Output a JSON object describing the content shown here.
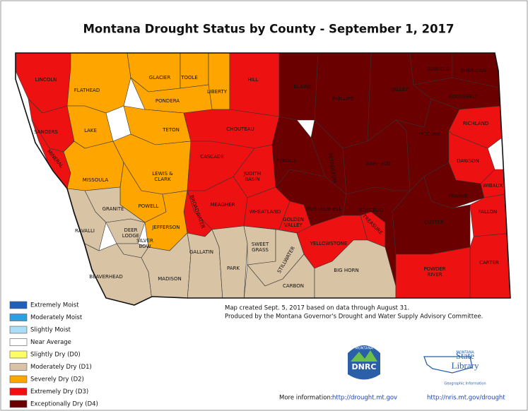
{
  "title": "Montana Drought Status by County - September 1, 2017",
  "legend": [
    {
      "label": "Extremely Moist",
      "color": "#1f5fb8"
    },
    {
      "label": "Moderately Moist",
      "color": "#29a3dd"
    },
    {
      "label": "Slightly Moist",
      "color": "#aaddf7"
    },
    {
      "label": "Near Average",
      "color": "#ffffff"
    },
    {
      "label": "Slightly Dry (D0)",
      "color": "#ffff66"
    },
    {
      "label": "Moderately Dry (D1)",
      "color": "#d9c3a5"
    },
    {
      "label": "Severely Dry (D2)",
      "color": "#ffa500"
    },
    {
      "label": "Extremely Dry (D3)",
      "color": "#ee1111"
    },
    {
      "label": "Exceptionally Dry (D4)",
      "color": "#6b0000"
    }
  ],
  "counties": [
    {
      "name": "LINCOLN",
      "color": "#ee1111"
    },
    {
      "name": "FLATHEAD",
      "color": "#ffa500"
    },
    {
      "name": "SANDERS",
      "color": "#ee1111"
    },
    {
      "name": "MINERAL",
      "color": "#ee1111"
    },
    {
      "name": "LAKE",
      "color": "#ffa500"
    },
    {
      "name": "MISSOULA",
      "color": "#ffa500"
    },
    {
      "name": "GLACIER",
      "color": "#ffa500"
    },
    {
      "name": "TOOLE",
      "color": "#ffa500"
    },
    {
      "name": "LIBERTY",
      "color": "#ffa500"
    },
    {
      "name": "HILL",
      "color": "#ee1111"
    },
    {
      "name": "PONDERA",
      "color": "#ffa500"
    },
    {
      "name": "TETON",
      "color": "#ffa500"
    },
    {
      "name": "LEWIS &\nCLARK",
      "color": "#ffa500"
    },
    {
      "name": "POWELL",
      "color": "#ffa500"
    },
    {
      "name": "CHOUTEAU",
      "color": "#ee1111"
    },
    {
      "name": "CASCADE",
      "color": "#ee1111"
    },
    {
      "name": "JUDITH\nBASIN",
      "color": "#ee1111"
    },
    {
      "name": "MEAGHER",
      "color": "#ee1111"
    },
    {
      "name": "BROADWATER",
      "color": "#ee1111"
    },
    {
      "name": "JEFFERSON",
      "color": "#ffa500"
    },
    {
      "name": "GRANITE",
      "color": "#d9c3a5"
    },
    {
      "name": "RAVALLI",
      "color": "#d9c3a5"
    },
    {
      "name": "DEER\nLODGE",
      "color": "#d9c3a5"
    },
    {
      "name": "SILVER\nBOW",
      "color": "#d9c3a5"
    },
    {
      "name": "BEAVERHEAD",
      "color": "#d9c3a5"
    },
    {
      "name": "MADISON",
      "color": "#d9c3a5"
    },
    {
      "name": "GALLATIN",
      "color": "#d9c3a5"
    },
    {
      "name": "PARK",
      "color": "#d9c3a5"
    },
    {
      "name": "SWEET\nGRASS",
      "color": "#d9c3a5"
    },
    {
      "name": "STILLWATER",
      "color": "#d9c3a5"
    },
    {
      "name": "CARBON",
      "color": "#d9c3a5"
    },
    {
      "name": "WHEATLAND",
      "color": "#ee1111"
    },
    {
      "name": "GOLDEN\nVALLEY",
      "color": "#ee1111"
    },
    {
      "name": "MUSSELSHELL",
      "color": "#6b0000"
    },
    {
      "name": "YELLOWSTONE",
      "color": "#ee1111"
    },
    {
      "name": "TREASURE",
      "color": "#ee1111"
    },
    {
      "name": "BIG HORN",
      "color": "#d9c3a5"
    },
    {
      "name": "FERGUS",
      "color": "#6b0000"
    },
    {
      "name": "BLAINE",
      "color": "#6b0000"
    },
    {
      "name": "PHILLIPS",
      "color": "#6b0000"
    },
    {
      "name": "PETROLEUM",
      "color": "#6b0000"
    },
    {
      "name": "VALLEY",
      "color": "#6b0000"
    },
    {
      "name": "DANIELS",
      "color": "#6b0000"
    },
    {
      "name": "SHERIDAN",
      "color": "#6b0000"
    },
    {
      "name": "ROOSEVELT",
      "color": "#6b0000"
    },
    {
      "name": "GARFIELD",
      "color": "#6b0000"
    },
    {
      "name": "MCCONE",
      "color": "#6b0000"
    },
    {
      "name": "RICHLAND",
      "color": "#ee1111"
    },
    {
      "name": "DAWSON",
      "color": "#ee1111"
    },
    {
      "name": "WIBAUX",
      "color": "#ee1111"
    },
    {
      "name": "PRAIRIE",
      "color": "#6b0000"
    },
    {
      "name": "FALLON",
      "color": "#ee1111"
    },
    {
      "name": "CARTER",
      "color": "#ee1111"
    },
    {
      "name": "CUSTER",
      "color": "#6b0000"
    },
    {
      "name": "ROSEBUD",
      "color": "#6b0000"
    },
    {
      "name": "POWDER\nRIVER",
      "color": "#ee1111"
    }
  ],
  "notes": [
    "Map created Sept. 5, 2017 based on data through August 31.",
    "Produced by the Montana Governor's Drought and Water Supply Advisory Committee."
  ],
  "logos": {
    "dnrc": {
      "top": "MONTANA",
      "name": "DNRC"
    },
    "library": {
      "top": "MONTANA",
      "name": "State\nLibrary",
      "sub": "Geographic Information"
    }
  },
  "footer": {
    "label": "More information:",
    "links": [
      "http://drought.mt.gov",
      "http://nris.mt.gov/drought"
    ]
  }
}
